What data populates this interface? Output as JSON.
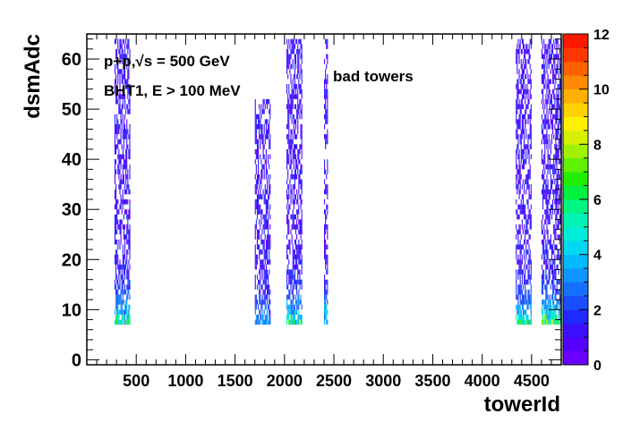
{
  "chart_data": {
    "type": "heatmap",
    "title": "",
    "xlabel": "towerId",
    "ylabel": "dsmAdc",
    "xlim": [
      0,
      4800
    ],
    "ylim": [
      -1,
      65
    ],
    "x_ticks": [
      500,
      1000,
      1500,
      2000,
      2500,
      3000,
      3500,
      4000,
      4500
    ],
    "y_ticks": [
      0,
      10,
      20,
      30,
      40,
      50,
      60
    ],
    "colorbar": {
      "min": 0,
      "max": 12,
      "ticks": [
        0,
        2,
        4,
        6,
        8,
        10,
        12
      ],
      "colors": [
        "#6a00ff",
        "#5500ff",
        "#3a10ff",
        "#1f2bff",
        "#1a4dff",
        "#1470ff",
        "#0c95ff",
        "#00b8ff",
        "#00d8f0",
        "#00ecd8",
        "#00f4b4",
        "#00f680",
        "#00f040",
        "#20f000",
        "#60f000",
        "#a0f000",
        "#d8f000",
        "#fff000",
        "#ffd200",
        "#ffb000",
        "#ff8a00",
        "#ff6000",
        "#ff3800",
        "#ff1800"
      ]
    },
    "annotations": [
      "p+p,√s = 500 GeV",
      "BHT1, E > 100 MeV",
      "bad towers"
    ],
    "bands": [
      {
        "x_start": 280,
        "x_end": 440,
        "y_min": 7,
        "y_max": 64,
        "peak": 4.5
      },
      {
        "x_start": 1700,
        "x_end": 1860,
        "y_min": 7,
        "y_max": 52,
        "peak": 2.5
      },
      {
        "x_start": 2020,
        "x_end": 2180,
        "y_min": 7,
        "y_max": 64,
        "peak": 4
      },
      {
        "x_start": 2400,
        "x_end": 2440,
        "y_min": 7,
        "y_max": 64,
        "peak": 4
      },
      {
        "x_start": 4340,
        "x_end": 4500,
        "y_min": 7,
        "y_max": 64,
        "peak": 4
      },
      {
        "x_start": 4600,
        "x_end": 4800,
        "y_min": 7,
        "y_max": 64,
        "peak": 5
      }
    ]
  }
}
